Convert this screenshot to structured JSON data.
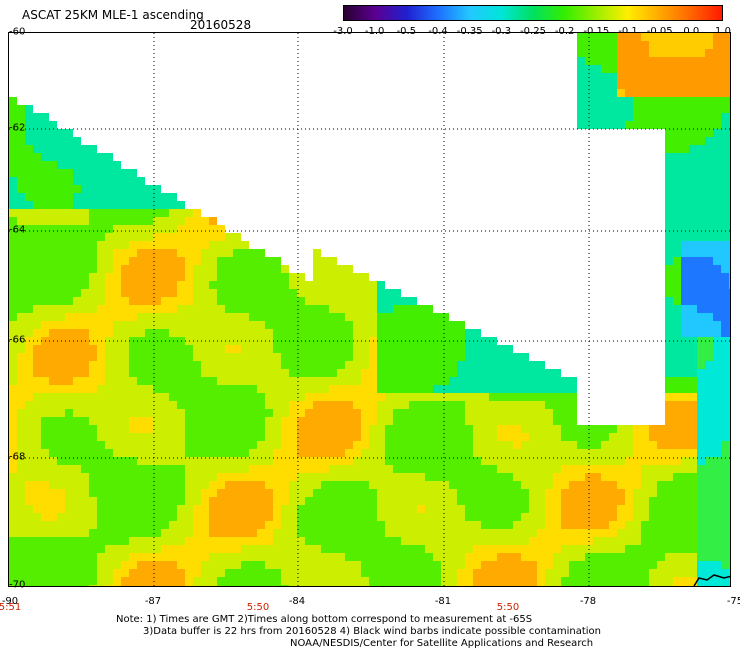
{
  "header": {
    "title": "ASCAT 25KM MLE-1 ascending",
    "date": "20160528"
  },
  "colorbar": {
    "ticks": [
      "-3.0",
      "-1.0",
      "-0.5",
      "-0.4",
      "-0.35",
      "-0.3",
      "-0.25",
      "-0.2",
      "-0.15",
      "-0.1",
      "-0.05",
      "0.0",
      "1.0"
    ]
  },
  "axes": {
    "lat_labels": [
      "-60",
      "-62",
      "-64",
      "-66",
      "-68",
      "-70"
    ],
    "lon_labels": [
      "-90",
      "-87",
      "-84",
      "-81",
      "-78",
      "-75"
    ],
    "time_labels": [
      "5:51",
      "5:50",
      "5:50"
    ]
  },
  "notes": [
    "Note: 1) Times are GMT 2)Times along bottom correspond to measurement at -65S",
    "3)Data buffer is 22 hrs from 20160528 4) Black wind barbs indicate possible contamination",
    "NOAA/NESDIS/Center for Satellite Applications and Research"
  ],
  "colors": {
    "palette": [
      "#2a0030",
      "#5a0090",
      "#2020d0",
      "#1e70ff",
      "#22c8ff",
      "#00e5d8",
      "#00e060",
      "#33ee00",
      "#9aee00",
      "#ffee00",
      "#ffaa00",
      "#ff6600",
      "#ff1a00"
    ]
  }
}
